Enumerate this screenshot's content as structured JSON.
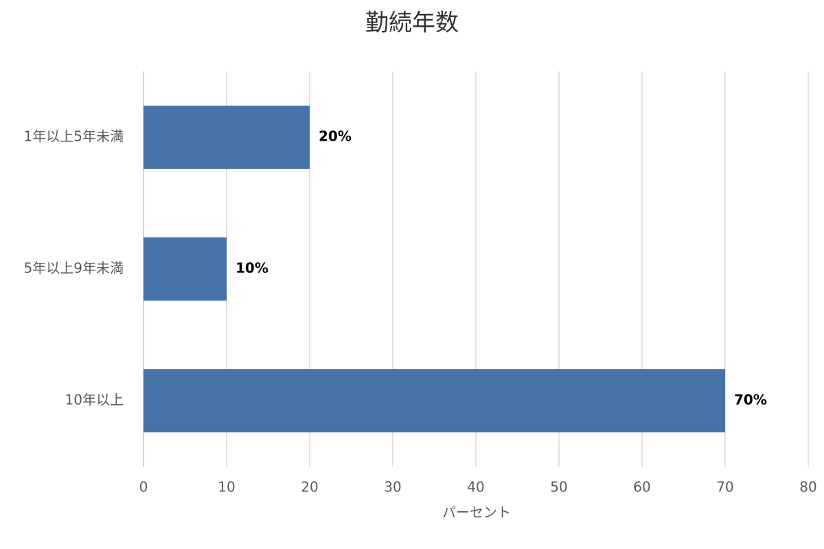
{
  "chart_data": {
    "type": "hbar",
    "title": "勤続年数",
    "categories": [
      "1年以上5年未満",
      "5年以上9年未満",
      "10年以上"
    ],
    "values": [
      20,
      10,
      70
    ],
    "value_labels": [
      "20%",
      "10%",
      "70%"
    ],
    "color": "#4674a8",
    "x_label": "パーセント",
    "xlim": [
      0,
      80
    ],
    "xticks": [
      0,
      10,
      20,
      30,
      40,
      50,
      60,
      70,
      80
    ],
    "grid": true
  }
}
